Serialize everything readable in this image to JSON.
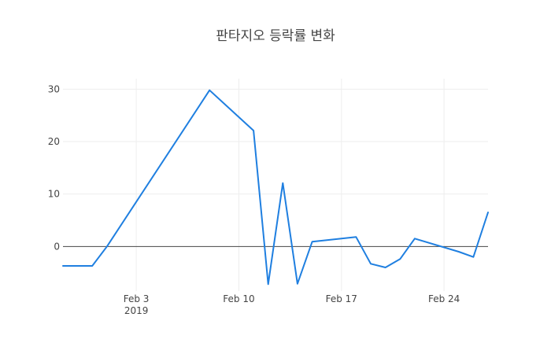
{
  "chart_data": {
    "type": "line",
    "title": "판타지오 등락률 변화",
    "xlabel": "",
    "ylabel": "",
    "x_year_label": "2019",
    "xticks": [
      {
        "date": "2019-02-03",
        "label": "Feb 3"
      },
      {
        "date": "2019-02-10",
        "label": "Feb 10"
      },
      {
        "date": "2019-02-17",
        "label": "Feb 17"
      },
      {
        "date": "2019-02-24",
        "label": "Feb 24"
      }
    ],
    "yticks": [
      0,
      10,
      20,
      30
    ],
    "xlim": [
      "2019-01-29",
      "2019-02-27"
    ],
    "ylim": [
      -8.5,
      32
    ],
    "grid": true,
    "zero_line": true,
    "line_color": "#1f7fe0",
    "series": [
      {
        "x": [
          "2019-01-29",
          "2019-01-31",
          "2019-02-01",
          "2019-02-08",
          "2019-02-11",
          "2019-02-12",
          "2019-02-13",
          "2019-02-14",
          "2019-02-15",
          "2019-02-18",
          "2019-02-19",
          "2019-02-20",
          "2019-02-21",
          "2019-02-22",
          "2019-02-25",
          "2019-02-26",
          "2019-02-27"
        ],
        "y": [
          -3.7,
          -3.7,
          0.0,
          29.8,
          22.1,
          -7.2,
          12.1,
          -7.1,
          0.9,
          1.8,
          -3.3,
          -4.0,
          -2.4,
          1.5,
          -1.0,
          -2.0,
          6.5
        ]
      }
    ]
  }
}
